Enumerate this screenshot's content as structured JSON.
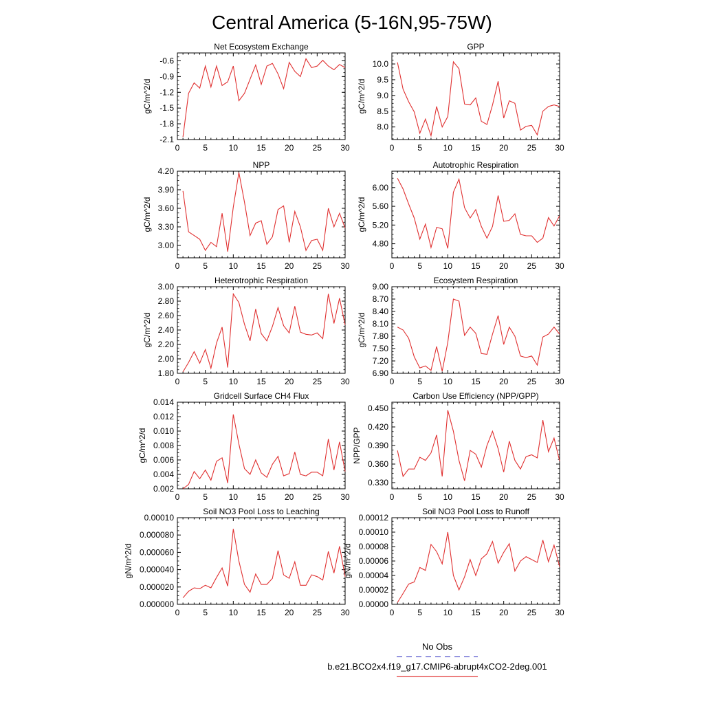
{
  "figure": {
    "title": "Central America (5-16N,95-75W)",
    "legend": [
      {
        "label": "No Obs",
        "color": "#5555cc",
        "style": "dashed"
      },
      {
        "label": "b.e21.BCO2x4.f19_g17.CMIP6-abrupt4xCO2-2deg.001",
        "color": "#e03030",
        "style": "solid"
      }
    ]
  },
  "chart_data": [
    {
      "type": "line",
      "title": "Net Ecosystem Exchange",
      "ylabel": "gC/m^2/d",
      "xlim": [
        0,
        30
      ],
      "ylim": [
        -2.1,
        -0.45
      ],
      "xticks": [
        0,
        5,
        10,
        15,
        20,
        25,
        30
      ],
      "yticks": [
        -2.1,
        -1.8,
        -1.5,
        -1.2,
        -0.9,
        -0.6
      ],
      "ytick_labels": [
        "-2.1",
        "-1.8",
        "-1.5",
        "-1.2",
        "-0.9",
        "-0.6"
      ],
      "series": [
        {
          "name": "b.e21.BCO2x4.f19_g17.CMIP6-abrupt4xCO2-2deg.001",
          "color": "#e03030",
          "x": [
            1,
            2,
            3,
            4,
            5,
            6,
            7,
            8,
            9,
            10,
            11,
            12,
            13,
            14,
            15,
            16,
            17,
            18,
            19,
            20,
            21,
            22,
            23,
            24,
            25,
            26,
            27,
            28,
            29,
            30
          ],
          "y": [
            -2.05,
            -1.22,
            -1.02,
            -1.12,
            -0.7,
            -1.1,
            -0.7,
            -1.07,
            -1.0,
            -0.7,
            -1.36,
            -1.22,
            -0.95,
            -0.68,
            -1.05,
            -0.7,
            -0.65,
            -0.85,
            -1.13,
            -0.63,
            -0.8,
            -0.9,
            -0.56,
            -0.73,
            -0.7,
            -0.59,
            -0.7,
            -0.77,
            -0.67,
            -0.73
          ]
        }
      ]
    },
    {
      "type": "line",
      "title": "GPP",
      "ylabel": "gC/m^2/d",
      "xlim": [
        0,
        30
      ],
      "ylim": [
        7.6,
        10.35
      ],
      "xticks": [
        0,
        5,
        10,
        15,
        20,
        25,
        30
      ],
      "yticks": [
        8.0,
        8.5,
        9.0,
        9.5,
        10.0
      ],
      "ytick_labels": [
        "8.0",
        "8.5",
        "9.0",
        "9.5",
        "10.0"
      ],
      "series": [
        {
          "name": "b.e21.BCO2x4.f19_g17.CMIP6-abrupt4xCO2-2deg.001",
          "color": "#e03030",
          "x": [
            1,
            2,
            3,
            4,
            5,
            6,
            7,
            8,
            9,
            10,
            11,
            12,
            13,
            14,
            15,
            16,
            17,
            18,
            19,
            20,
            21,
            22,
            23,
            24,
            25,
            26,
            27,
            28,
            29,
            30
          ],
          "y": [
            10.05,
            9.2,
            8.8,
            8.48,
            7.8,
            8.25,
            7.72,
            8.65,
            8.0,
            8.33,
            10.07,
            9.85,
            8.73,
            8.7,
            8.92,
            8.18,
            8.08,
            8.7,
            9.45,
            8.28,
            8.83,
            8.75,
            7.9,
            8.02,
            8.05,
            7.75,
            8.5,
            8.65,
            8.7,
            8.65
          ]
        }
      ]
    },
    {
      "type": "line",
      "title": "NPP",
      "ylabel": "gC/m^2/d",
      "xlim": [
        0,
        30
      ],
      "ylim": [
        2.8,
        4.2
      ],
      "xticks": [
        0,
        5,
        10,
        15,
        20,
        25,
        30
      ],
      "yticks": [
        3.0,
        3.3,
        3.6,
        3.9,
        4.2
      ],
      "ytick_labels": [
        "3.00",
        "3.30",
        "3.60",
        "3.90",
        "4.20"
      ],
      "series": [
        {
          "name": "b.e21.BCO2x4.f19_g17.CMIP6-abrupt4xCO2-2deg.001",
          "color": "#e03030",
          "x": [
            1,
            2,
            3,
            4,
            5,
            6,
            7,
            8,
            9,
            10,
            11,
            12,
            13,
            14,
            15,
            16,
            17,
            18,
            19,
            20,
            21,
            22,
            23,
            24,
            25,
            26,
            27,
            28,
            29,
            30
          ],
          "y": [
            3.88,
            3.22,
            3.16,
            3.1,
            2.92,
            3.05,
            2.98,
            3.52,
            2.9,
            3.62,
            4.18,
            3.7,
            3.16,
            3.36,
            3.4,
            3.02,
            3.14,
            3.58,
            3.64,
            3.05,
            3.55,
            3.3,
            2.92,
            3.08,
            3.1,
            2.92,
            3.6,
            3.3,
            3.52,
            3.28
          ]
        }
      ]
    },
    {
      "type": "line",
      "title": "Autotrophic Respiration",
      "ylabel": "gC/m^2/d",
      "xlim": [
        0,
        30
      ],
      "ylim": [
        4.5,
        6.35
      ],
      "xticks": [
        0,
        5,
        10,
        15,
        20,
        25,
        30
      ],
      "yticks": [
        4.8,
        5.2,
        5.6,
        6.0
      ],
      "ytick_labels": [
        "4.80",
        "5.20",
        "5.60",
        "6.00"
      ],
      "series": [
        {
          "name": "b.e21.BCO2x4.f19_g17.CMIP6-abrupt4xCO2-2deg.001",
          "color": "#e03030",
          "x": [
            1,
            2,
            3,
            4,
            5,
            6,
            7,
            8,
            9,
            10,
            11,
            12,
            13,
            14,
            15,
            16,
            17,
            18,
            19,
            20,
            21,
            22,
            23,
            24,
            25,
            26,
            27,
            28,
            29,
            30
          ],
          "y": [
            6.2,
            5.97,
            5.65,
            5.35,
            4.9,
            5.22,
            4.72,
            5.15,
            5.12,
            4.7,
            5.9,
            6.18,
            5.57,
            5.35,
            5.53,
            5.17,
            4.92,
            5.17,
            5.83,
            5.28,
            5.3,
            5.44,
            5.0,
            4.97,
            4.97,
            4.83,
            4.92,
            5.36,
            5.18,
            5.4
          ]
        }
      ]
    },
    {
      "type": "line",
      "title": "Heterotrophic Respiration",
      "ylabel": "gC/m^2/d",
      "xlim": [
        0,
        30
      ],
      "ylim": [
        1.8,
        3.0
      ],
      "xticks": [
        0,
        5,
        10,
        15,
        20,
        25,
        30
      ],
      "yticks": [
        1.8,
        2.0,
        2.2,
        2.4,
        2.6,
        2.8,
        3.0
      ],
      "ytick_labels": [
        "1.80",
        "2.00",
        "2.20",
        "2.40",
        "2.60",
        "2.80",
        "3.00"
      ],
      "series": [
        {
          "name": "b.e21.BCO2x4.f19_g17.CMIP6-abrupt4xCO2-2deg.001",
          "color": "#e03030",
          "x": [
            1,
            2,
            3,
            4,
            5,
            6,
            7,
            8,
            9,
            10,
            11,
            12,
            13,
            14,
            15,
            16,
            17,
            18,
            19,
            20,
            21,
            22,
            23,
            24,
            25,
            26,
            27,
            28,
            29,
            30
          ],
          "y": [
            1.82,
            1.95,
            2.1,
            1.94,
            2.13,
            1.87,
            2.22,
            2.44,
            1.88,
            2.9,
            2.78,
            2.48,
            2.25,
            2.69,
            2.35,
            2.25,
            2.45,
            2.71,
            2.46,
            2.36,
            2.73,
            2.37,
            2.34,
            2.33,
            2.36,
            2.28,
            2.9,
            2.49,
            2.84,
            2.47
          ]
        }
      ]
    },
    {
      "type": "line",
      "title": "Ecosystem Respiration",
      "ylabel": "gC/m^2/d",
      "xlim": [
        0,
        30
      ],
      "ylim": [
        6.9,
        9.0
      ],
      "xticks": [
        0,
        5,
        10,
        15,
        20,
        25,
        30
      ],
      "yticks": [
        6.9,
        7.2,
        7.5,
        7.8,
        8.1,
        8.4,
        8.7,
        9.0
      ],
      "ytick_labels": [
        "6.90",
        "7.20",
        "7.50",
        "7.80",
        "8.10",
        "8.40",
        "8.70",
        "9.00"
      ],
      "series": [
        {
          "name": "b.e21.BCO2x4.f19_g17.CMIP6-abrupt4xCO2-2deg.001",
          "color": "#e03030",
          "x": [
            1,
            2,
            3,
            4,
            5,
            6,
            7,
            8,
            9,
            10,
            11,
            12,
            13,
            14,
            15,
            16,
            17,
            18,
            19,
            20,
            21,
            22,
            23,
            24,
            25,
            26,
            27,
            28,
            29,
            30
          ],
          "y": [
            8.02,
            7.95,
            7.75,
            7.3,
            7.03,
            7.08,
            6.97,
            7.55,
            6.95,
            7.65,
            8.7,
            8.65,
            7.82,
            8.02,
            7.87,
            7.38,
            7.36,
            7.85,
            8.3,
            7.6,
            8.02,
            7.8,
            7.32,
            7.28,
            7.32,
            7.1,
            7.78,
            7.85,
            8.02,
            7.85
          ]
        }
      ]
    },
    {
      "type": "line",
      "title": "Gridcell Surface CH4 Flux",
      "ylabel": "gC/m^2/d",
      "xlim": [
        0,
        30
      ],
      "ylim": [
        0.002,
        0.014
      ],
      "xticks": [
        0,
        5,
        10,
        15,
        20,
        25,
        30
      ],
      "yticks": [
        0.002,
        0.004,
        0.006,
        0.008,
        0.01,
        0.012,
        0.014
      ],
      "ytick_labels": [
        "0.002",
        "0.004",
        "0.006",
        "0.008",
        "0.010",
        "0.012",
        "0.014"
      ],
      "series": [
        {
          "name": "b.e21.BCO2x4.f19_g17.CMIP6-abrupt4xCO2-2deg.001",
          "color": "#e03030",
          "x": [
            1,
            2,
            3,
            4,
            5,
            6,
            7,
            8,
            9,
            10,
            11,
            12,
            13,
            14,
            15,
            16,
            17,
            18,
            19,
            20,
            21,
            22,
            23,
            24,
            25,
            26,
            27,
            28,
            29,
            30
          ],
          "y": [
            0.002,
            0.0026,
            0.0044,
            0.0034,
            0.0046,
            0.0032,
            0.0058,
            0.0063,
            0.0028,
            0.0123,
            0.0082,
            0.0048,
            0.004,
            0.006,
            0.0042,
            0.0036,
            0.0054,
            0.0065,
            0.0038,
            0.0041,
            0.0071,
            0.004,
            0.0038,
            0.0043,
            0.0043,
            0.0038,
            0.0089,
            0.0046,
            0.0085,
            0.0044
          ]
        }
      ]
    },
    {
      "type": "line",
      "title": "Carbon Use Efficiency (NPP/GPP)",
      "ylabel": "NPP/GPP",
      "xlim": [
        0,
        30
      ],
      "ylim": [
        0.32,
        0.46
      ],
      "xticks": [
        0,
        5,
        10,
        15,
        20,
        25,
        30
      ],
      "yticks": [
        0.33,
        0.36,
        0.39,
        0.42,
        0.45
      ],
      "ytick_labels": [
        "0.330",
        "0.360",
        "0.390",
        "0.420",
        "0.450"
      ],
      "series": [
        {
          "name": "b.e21.BCO2x4.f19_g17.CMIP6-abrupt4xCO2-2deg.001",
          "color": "#e03030",
          "x": [
            1,
            2,
            3,
            4,
            5,
            6,
            7,
            8,
            9,
            10,
            11,
            12,
            13,
            14,
            15,
            16,
            17,
            18,
            19,
            20,
            21,
            22,
            23,
            24,
            25,
            26,
            27,
            28,
            29,
            30
          ],
          "y": [
            0.382,
            0.34,
            0.352,
            0.352,
            0.371,
            0.366,
            0.378,
            0.407,
            0.34,
            0.447,
            0.413,
            0.366,
            0.333,
            0.382,
            0.376,
            0.355,
            0.39,
            0.413,
            0.385,
            0.347,
            0.397,
            0.366,
            0.352,
            0.372,
            0.375,
            0.37,
            0.431,
            0.38,
            0.402,
            0.365
          ]
        }
      ]
    },
    {
      "type": "line",
      "title": "Soil NO3 Pool Loss to Leaching",
      "ylabel": "gN/m^2/d",
      "xlim": [
        0,
        30
      ],
      "ylim": [
        0.0,
        0.0001
      ],
      "xticks": [
        0,
        5,
        10,
        15,
        20,
        25,
        30
      ],
      "yticks": [
        0.0,
        2e-05,
        4e-05,
        6e-05,
        8e-05,
        0.0001
      ],
      "ytick_labels": [
        "0.000000",
        "0.000020",
        "0.000040",
        "0.000060",
        "0.000080",
        "0.00010"
      ],
      "series": [
        {
          "name": "b.e21.BCO2x4.f19_g17.CMIP6-abrupt4xCO2-2deg.001",
          "color": "#e03030",
          "x": [
            1,
            2,
            3,
            4,
            5,
            6,
            7,
            8,
            9,
            10,
            11,
            12,
            13,
            14,
            15,
            16,
            17,
            18,
            19,
            20,
            21,
            22,
            23,
            24,
            25,
            26,
            27,
            28,
            29,
            30
          ],
          "y": [
            7.5e-06,
            1.5e-05,
            1.9e-05,
            1.8e-05,
            2.2e-05,
            1.9e-05,
            3.1e-05,
            4.2e-05,
            2.1e-05,
            8.7e-05,
            5e-05,
            2.3e-05,
            1.4e-05,
            3.5e-05,
            2.3e-05,
            2.3e-05,
            3e-05,
            6.2e-05,
            3.4e-05,
            3e-05,
            4.9e-05,
            2.2e-05,
            2.2e-05,
            3.4e-05,
            3.2e-05,
            2.8e-05,
            6.1e-05,
            3.6e-05,
            6.7e-05,
            3.2e-05
          ]
        }
      ]
    },
    {
      "type": "line",
      "title": "Soil NO3 Pool Loss to Runoff",
      "ylabel": "gN/m^2/d",
      "xlim": [
        0,
        30
      ],
      "ylim": [
        0.0,
        0.00012
      ],
      "xticks": [
        0,
        5,
        10,
        15,
        20,
        25,
        30
      ],
      "yticks": [
        0.0,
        2e-05,
        4e-05,
        6e-05,
        8e-05,
        0.0001,
        0.00012
      ],
      "ytick_labels": [
        "0.00000",
        "0.00002",
        "0.00004",
        "0.00006",
        "0.00008",
        "0.00010",
        "0.00012"
      ],
      "series": [
        {
          "name": "b.e21.BCO2x4.f19_g17.CMIP6-abrupt4xCO2-2deg.001",
          "color": "#e03030",
          "x": [
            1,
            2,
            3,
            4,
            5,
            6,
            7,
            8,
            9,
            10,
            11,
            12,
            13,
            14,
            15,
            16,
            17,
            18,
            19,
            20,
            21,
            22,
            23,
            24,
            25,
            26,
            27,
            28,
            29,
            30
          ],
          "y": [
            2.5e-06,
            1.5e-05,
            2.8e-05,
            3.1e-05,
            5.1e-05,
            4.7e-05,
            8.3e-05,
            7.3e-05,
            5.6e-05,
            0.0001,
            4e-05,
            2e-05,
            3.8e-05,
            6.2e-05,
            4e-05,
            6.3e-05,
            7e-05,
            8.7e-05,
            5.7e-05,
            7.2e-05,
            8.4e-05,
            4.6e-05,
            6e-05,
            6.6e-05,
            6.2e-05,
            5.8e-05,
            8.9e-05,
            5.9e-05,
            8.2e-05,
            5.2e-05
          ]
        }
      ]
    }
  ]
}
